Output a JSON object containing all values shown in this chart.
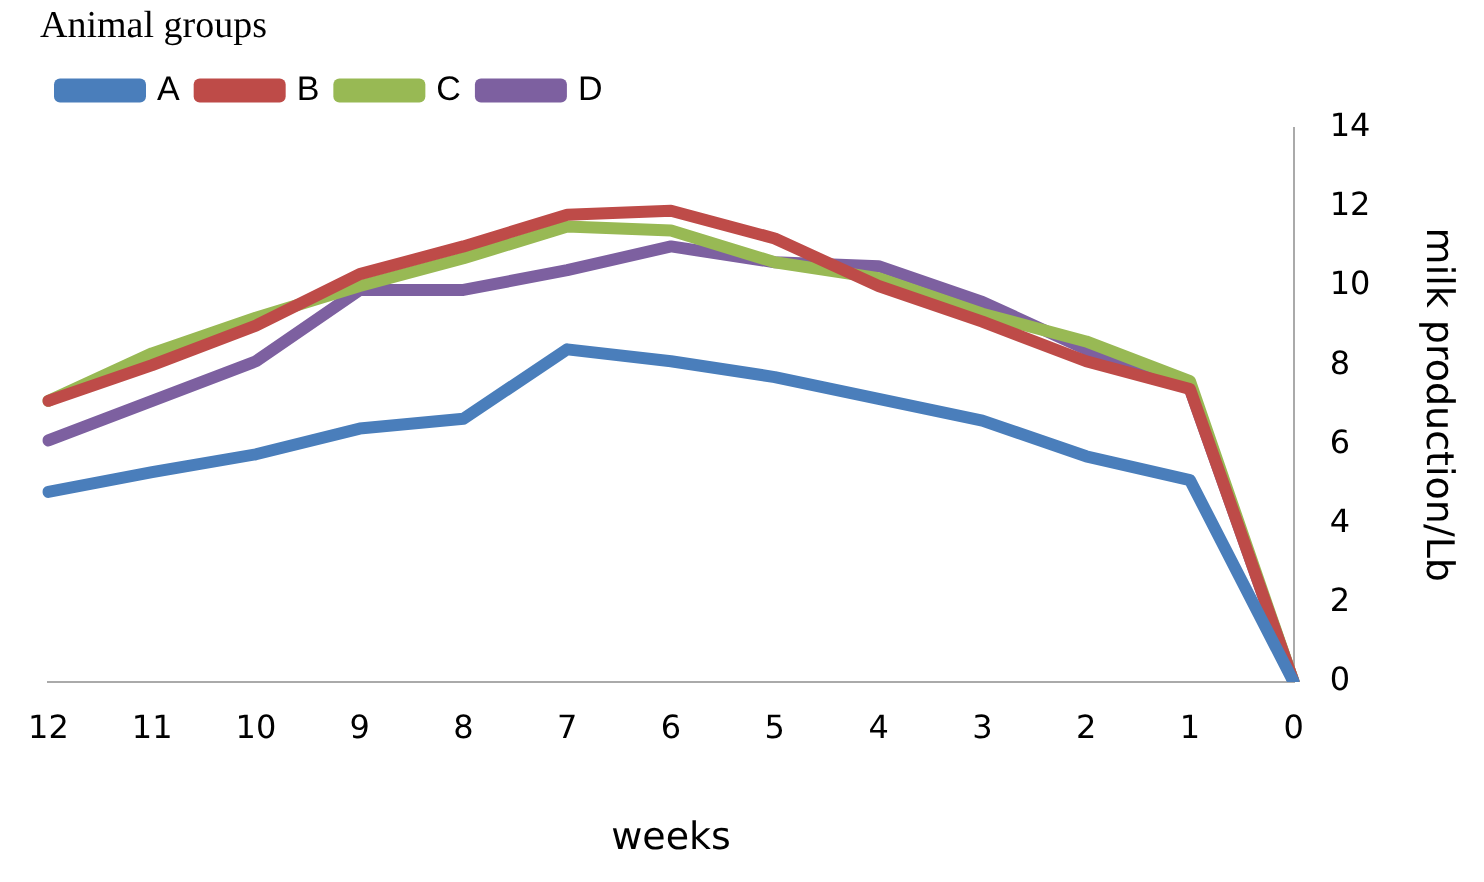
{
  "chart_data": {
    "type": "line",
    "xlabel": "weeks",
    "ylabel": "milk production/Lb",
    "legend_title": "Animal groups",
    "categories": [
      "12",
      "11",
      "10",
      "9",
      "8",
      "7",
      "6",
      "5",
      "4",
      "3",
      "2",
      "1",
      "0"
    ],
    "series": [
      {
        "name": "A",
        "color": "#4a7ebb",
        "values": [
          4.8,
          5.3,
          5.75,
          6.4,
          6.65,
          8.4,
          8.1,
          7.7,
          7.15,
          6.6,
          5.7,
          5.1,
          0
        ]
      },
      {
        "name": "B",
        "color": "#be4b48",
        "values": [
          7.1,
          8.0,
          9.0,
          10.3,
          11.0,
          11.8,
          11.9,
          11.2,
          10.0,
          9.1,
          8.1,
          7.4,
          0
        ]
      },
      {
        "name": "C",
        "color": "#98b954",
        "values": [
          7.1,
          8.3,
          9.2,
          10.0,
          10.7,
          11.5,
          11.4,
          10.6,
          10.2,
          9.3,
          8.6,
          7.6,
          0
        ]
      },
      {
        "name": "D",
        "color": "#7d60a0",
        "values": [
          6.1,
          7.1,
          8.1,
          9.9,
          9.9,
          10.4,
          11.0,
          10.6,
          10.5,
          9.6,
          8.4,
          7.4,
          0
        ]
      }
    ],
    "ylim": [
      0,
      14
    ],
    "yticks": [
      0,
      2,
      4,
      6,
      8,
      10,
      12,
      14
    ],
    "grid": false,
    "legend": "top left",
    "marker": "none",
    "line_style": "solid"
  }
}
